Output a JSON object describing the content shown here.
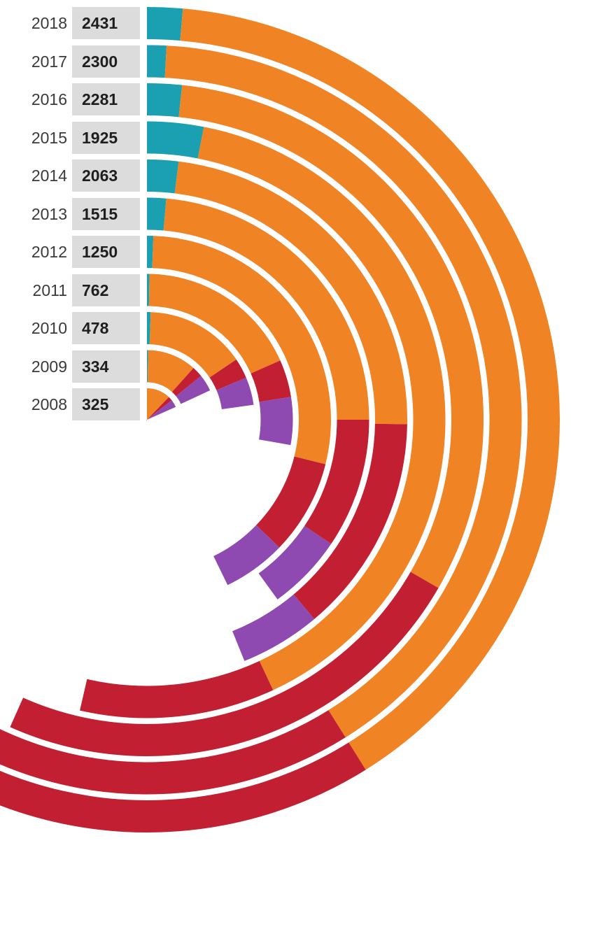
{
  "chart_data": {
    "type": "radial-bar",
    "title": "",
    "colors": [
      "#1aa0b0",
      "#f08424",
      "#c22032",
      "#8e4ab0"
    ],
    "rows": [
      {
        "year": "2018",
        "total": "2431",
        "segments": [
          5,
          143,
          80,
          0
        ]
      },
      {
        "year": "2017",
        "total": "2300",
        "segments": [
          3,
          145,
          65,
          0
        ]
      },
      {
        "year": "2016",
        "total": "2281",
        "segments": [
          6,
          114,
          84,
          0
        ]
      },
      {
        "year": "2015",
        "total": "1925",
        "segments": [
          11,
          144,
          38,
          0
        ]
      },
      {
        "year": "2014",
        "total": "2063",
        "segments": [
          7,
          84,
          49,
          18
        ]
      },
      {
        "year": "2013",
        "total": "1515",
        "segments": [
          5,
          85,
          34,
          20
        ]
      },
      {
        "year": "2012",
        "total": "1250",
        "segments": [
          2,
          102,
          30,
          20
        ]
      },
      {
        "year": "2011",
        "total": "762",
        "segments": [
          1,
          65,
          15,
          19
        ]
      },
      {
        "year": "2010",
        "total": "478",
        "segments": [
          2,
          54,
          11,
          15
        ]
      },
      {
        "year": "2009",
        "total": "334",
        "segments": [
          1,
          41,
          9,
          14
        ]
      },
      {
        "year": "2008",
        "total": "325",
        "segments": [
          0,
          44,
          8,
          14
        ]
      }
    ]
  }
}
